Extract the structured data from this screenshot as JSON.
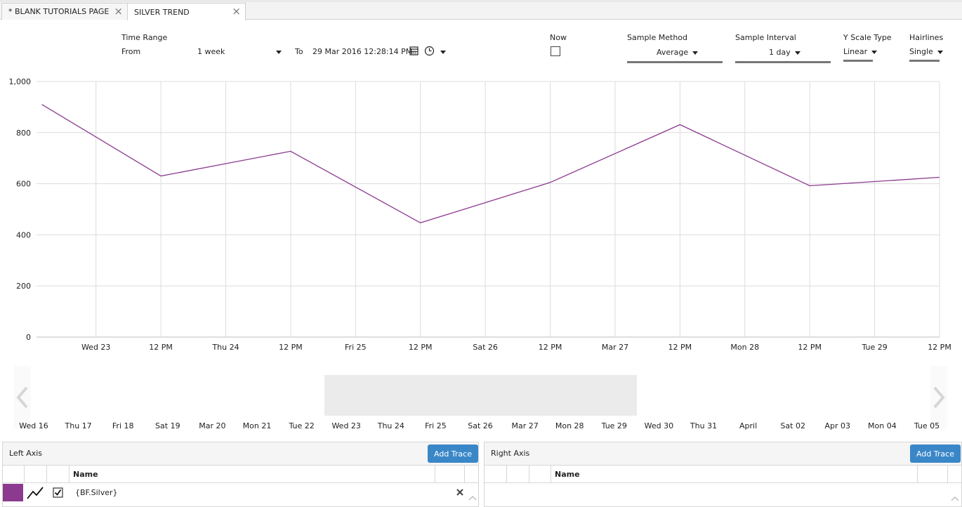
{
  "tabs": [
    {
      "label": "* BLANK TUTORIALS PAGE"
    },
    {
      "label": "SILVER TREND"
    }
  ],
  "toolbar": {
    "time_range_label": "Time Range",
    "from_label": "From",
    "from_value": "1 week",
    "to_label": "To",
    "to_value": "29 Mar 2016 12:28:14 PM",
    "now_label": "Now",
    "sample_method_label": "Sample Method",
    "sample_method_value": "Average",
    "sample_interval_label": "Sample Interval",
    "sample_interval_value": "1 day",
    "y_scale_label": "Y Scale Type",
    "y_scale_value": "Linear",
    "hairlines_label": "Hairlines",
    "hairlines_value": "Single"
  },
  "chart_data": {
    "type": "line",
    "title": "",
    "xlabel": "",
    "ylabel": "",
    "ylim": [
      0,
      1000
    ],
    "y_ticks": [
      "1,000",
      "800",
      "600",
      "400",
      "200",
      "0"
    ],
    "x_ticks": [
      "Wed 23",
      "12 PM",
      "Thu 24",
      "12 PM",
      "Fri 25",
      "12 PM",
      "Sat 26",
      "12 PM",
      "Mar 27",
      "12 PM",
      "Mon 28",
      "12 PM",
      "Tue 29",
      "12 PM"
    ],
    "grid": true,
    "series": [
      {
        "color": "#8b3a8f",
        "x": [
          "Mar 22 14:00",
          "Mar 23 12:00",
          "Mar 24 12:00",
          "Mar 25 12:00",
          "Mar 26 12:00",
          "Mar 27 12:00",
          "Mar 28 12:00",
          "Mar 29 12:00"
        ],
        "values": [
          910,
          630,
          727,
          447,
          605,
          831,
          592,
          625
        ]
      }
    ]
  },
  "navigator": {
    "labels": [
      "Wed 16",
      "Thu 17",
      "Fri 18",
      "Sat 19",
      "Mar 20",
      "Mon 21",
      "Tue 22",
      "Wed 23",
      "Thu 24",
      "Fri 25",
      "Sat 26",
      "Mar 27",
      "Mon 28",
      "Tue 29",
      "Wed 30",
      "Thu 31",
      "April",
      "Sat 02",
      "Apr 03",
      "Mon 04",
      "Tue 05"
    ]
  },
  "left_panel": {
    "title": "Left Axis",
    "add_label": "Add Trace",
    "name_header": "Name",
    "row_name": "{BF.Silver}",
    "row_color": "#8b3a8f"
  },
  "right_panel": {
    "title": "Right Axis",
    "add_label": "Add Trace",
    "name_header": "Name"
  }
}
